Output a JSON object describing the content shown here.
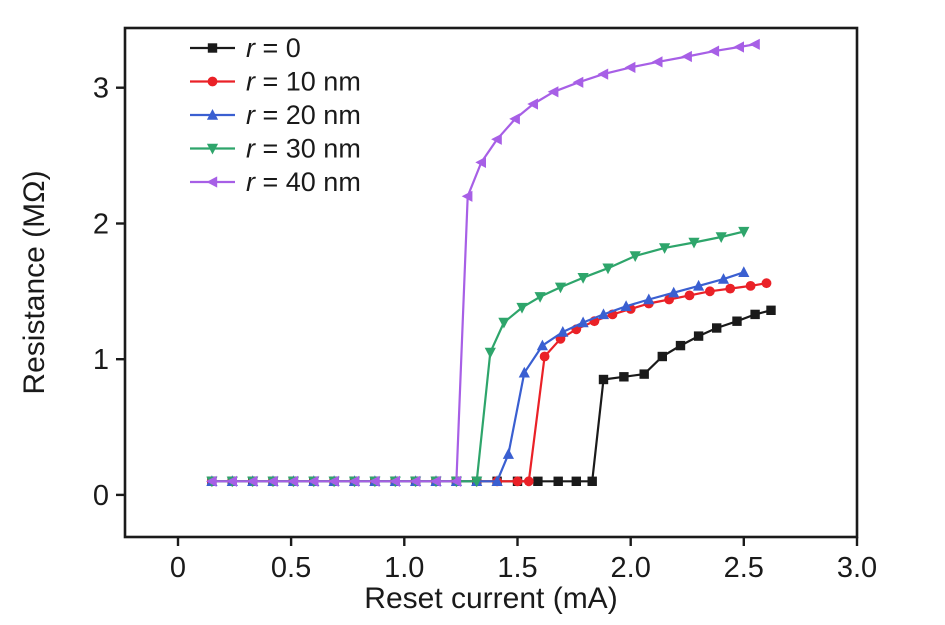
{
  "chart_data": {
    "type": "line",
    "title": "",
    "xlabel": "Reset current (mA)",
    "ylabel": "Resistance (MΩ)",
    "xlim": [
      -0.234,
      3.0
    ],
    "ylim": [
      -0.31,
      3.44
    ],
    "grid": false,
    "legend_position": "top-left",
    "xticks": {
      "values": [
        0,
        0.5,
        1.0,
        1.5,
        2.0,
        2.5,
        3.0
      ],
      "labels": [
        "0",
        "0.5",
        "1.0",
        "1.5",
        "2.0",
        "2.5",
        "3.0"
      ]
    },
    "yticks": {
      "values": [
        0,
        1,
        2,
        3
      ],
      "labels": [
        "0",
        "1",
        "2",
        "3"
      ]
    },
    "series": [
      {
        "name": "r = 0",
        "color": "#1a1a1a",
        "marker": "square",
        "x": [
          0.15,
          0.24,
          0.33,
          0.42,
          0.51,
          0.6,
          0.69,
          0.78,
          0.87,
          0.96,
          1.05,
          1.14,
          1.23,
          1.32,
          1.41,
          1.5,
          1.59,
          1.68,
          1.76,
          1.83,
          1.88,
          1.97,
          2.06,
          2.14,
          2.22,
          2.3,
          2.38,
          2.47,
          2.55,
          2.62
        ],
        "y": [
          0.1,
          0.1,
          0.1,
          0.1,
          0.1,
          0.1,
          0.1,
          0.1,
          0.1,
          0.1,
          0.1,
          0.1,
          0.1,
          0.1,
          0.1,
          0.1,
          0.1,
          0.1,
          0.1,
          0.1,
          0.85,
          0.87,
          0.89,
          1.02,
          1.1,
          1.17,
          1.23,
          1.28,
          1.33,
          1.36
        ]
      },
      {
        "name": "r = 10 nm",
        "color": "#ea2127",
        "marker": "circle",
        "x": [
          0.15,
          0.24,
          0.33,
          0.42,
          0.51,
          0.6,
          0.69,
          0.78,
          0.87,
          0.96,
          1.05,
          1.14,
          1.23,
          1.32,
          1.41,
          1.5,
          1.55,
          1.62,
          1.69,
          1.76,
          1.84,
          1.92,
          2.0,
          2.08,
          2.17,
          2.26,
          2.35,
          2.44,
          2.53,
          2.6
        ],
        "y": [
          0.1,
          0.1,
          0.1,
          0.1,
          0.1,
          0.1,
          0.1,
          0.1,
          0.1,
          0.1,
          0.1,
          0.1,
          0.1,
          0.1,
          0.1,
          0.1,
          0.1,
          1.02,
          1.15,
          1.22,
          1.28,
          1.33,
          1.37,
          1.41,
          1.44,
          1.47,
          1.5,
          1.52,
          1.54,
          1.56
        ]
      },
      {
        "name": "r = 20 nm",
        "color": "#3a5fd1",
        "marker": "triangle-up",
        "x": [
          0.15,
          0.24,
          0.33,
          0.42,
          0.51,
          0.6,
          0.69,
          0.78,
          0.87,
          0.96,
          1.05,
          1.14,
          1.23,
          1.32,
          1.41,
          1.46,
          1.53,
          1.61,
          1.7,
          1.79,
          1.88,
          1.98,
          2.08,
          2.19,
          2.3,
          2.41,
          2.5
        ],
        "y": [
          0.1,
          0.1,
          0.1,
          0.1,
          0.1,
          0.1,
          0.1,
          0.1,
          0.1,
          0.1,
          0.1,
          0.1,
          0.1,
          0.1,
          0.1,
          0.3,
          0.9,
          1.1,
          1.2,
          1.27,
          1.33,
          1.39,
          1.44,
          1.49,
          1.54,
          1.59,
          1.64
        ]
      },
      {
        "name": "r = 30 nm",
        "color": "#2ea56b",
        "marker": "triangle-down",
        "x": [
          0.15,
          0.24,
          0.33,
          0.42,
          0.51,
          0.6,
          0.69,
          0.78,
          0.87,
          0.96,
          1.05,
          1.14,
          1.23,
          1.32,
          1.38,
          1.44,
          1.52,
          1.6,
          1.69,
          1.79,
          1.9,
          2.02,
          2.15,
          2.28,
          2.4,
          2.5
        ],
        "y": [
          0.1,
          0.1,
          0.1,
          0.1,
          0.1,
          0.1,
          0.1,
          0.1,
          0.1,
          0.1,
          0.1,
          0.1,
          0.1,
          0.1,
          1.05,
          1.27,
          1.38,
          1.46,
          1.53,
          1.6,
          1.67,
          1.76,
          1.82,
          1.86,
          1.9,
          1.94
        ]
      },
      {
        "name": "r = 40 nm",
        "color": "#a75fe6",
        "marker": "triangle-left",
        "x": [
          0.15,
          0.24,
          0.33,
          0.42,
          0.51,
          0.6,
          0.69,
          0.78,
          0.87,
          0.96,
          1.05,
          1.14,
          1.23,
          1.28,
          1.34,
          1.41,
          1.49,
          1.57,
          1.66,
          1.77,
          1.88,
          2.0,
          2.12,
          2.25,
          2.37,
          2.48,
          2.55
        ],
        "y": [
          0.1,
          0.1,
          0.1,
          0.1,
          0.1,
          0.1,
          0.1,
          0.1,
          0.1,
          0.1,
          0.1,
          0.1,
          0.1,
          2.2,
          2.45,
          2.62,
          2.77,
          2.88,
          2.97,
          3.04,
          3.1,
          3.15,
          3.19,
          3.23,
          3.27,
          3.3,
          3.32
        ]
      }
    ]
  }
}
